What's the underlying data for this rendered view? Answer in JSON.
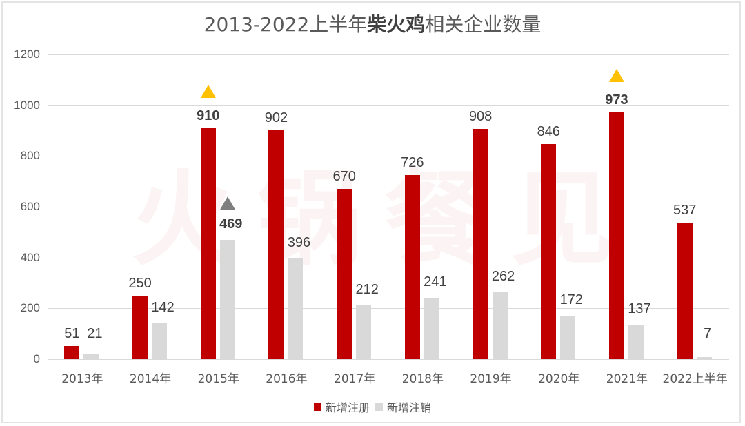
{
  "title": {
    "prefix": "2013-2022上半年",
    "bold": "柴火鸡",
    "suffix": "相关企业数量"
  },
  "watermark": [
    "火",
    "锅",
    "餐",
    "见"
  ],
  "colors": {
    "registered": "#c00000",
    "cancelled": "#d9d9d9",
    "highlight_triangle": "#ffc000",
    "gray_triangle": "#7f7f7f"
  },
  "legend": [
    {
      "label": "新增注册",
      "color": "#c00000"
    },
    {
      "label": "新增注销",
      "color": "#d9d9d9"
    }
  ],
  "chart_data": {
    "type": "bar",
    "title": "2013-2022上半年柴火鸡相关企业数量",
    "categories": [
      "2013年",
      "2014年",
      "2015年",
      "2016年",
      "2017年",
      "2018年",
      "2019年",
      "2020年",
      "2021年",
      "2022上半年"
    ],
    "series": [
      {
        "name": "新增注册",
        "values": [
          51,
          250,
          910,
          902,
          670,
          726,
          908,
          846,
          973,
          537
        ]
      },
      {
        "name": "新增注销",
        "values": [
          21,
          142,
          469,
          396,
          212,
          241,
          262,
          172,
          137,
          7
        ]
      }
    ],
    "yticks": [
      0,
      200,
      400,
      600,
      800,
      1000,
      1200
    ],
    "ylim": [
      0,
      1200
    ],
    "xlabel": "",
    "ylabel": "",
    "grid": true,
    "legend_position": "bottom",
    "annotations": [
      {
        "category": "2015年",
        "series": "新增注册",
        "marker": "triangle",
        "color": "#ffc000",
        "bold_label": true
      },
      {
        "category": "2015年",
        "series": "新增注销",
        "marker": "triangle",
        "color": "#7f7f7f",
        "bold_label": true
      },
      {
        "category": "2021年",
        "series": "新增注册",
        "marker": "triangle",
        "color": "#ffc000",
        "bold_label": true
      }
    ]
  }
}
